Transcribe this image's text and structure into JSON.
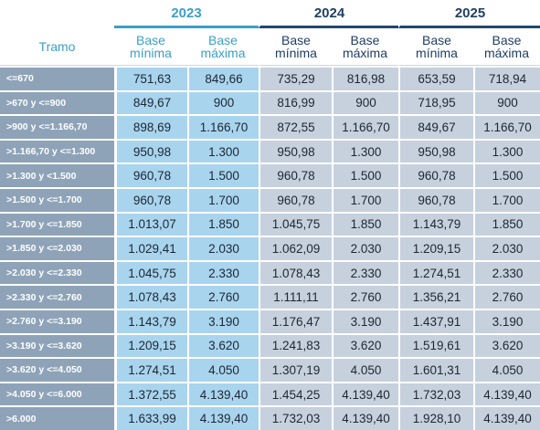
{
  "header": {
    "tramo_label": "Tramo",
    "years": [
      "2023",
      "2024",
      "2025"
    ],
    "sub_min": [
      "Base",
      "mínima"
    ],
    "sub_max": [
      "Base",
      "máxima"
    ]
  },
  "rows": [
    {
      "tramo": "<=670",
      "v": [
        "751,63",
        "849,66",
        "735,29",
        "816,98",
        "653,59",
        "718,94"
      ]
    },
    {
      "tramo": ">670 y <=900",
      "v": [
        "849,67",
        "900",
        "816,99",
        "900",
        "718,95",
        "900"
      ]
    },
    {
      "tramo": ">900 y <=1.166,70",
      "v": [
        "898,69",
        "1.166,70",
        "872,55",
        "1.166,70",
        "849,67",
        "1.166,70"
      ]
    },
    {
      "tramo": ">1.166,70 y <=1.300",
      "v": [
        "950,98",
        "1.300",
        "950,98",
        "1.300",
        "950,98",
        "1.300"
      ]
    },
    {
      "tramo": ">1.300 y <1.500",
      "v": [
        "960,78",
        "1.500",
        "960,78",
        "1.500",
        "960,78",
        "1.500"
      ]
    },
    {
      "tramo": ">1.500 y <=1.700",
      "v": [
        "960,78",
        "1.700",
        "960,78",
        "1.700",
        "960,78",
        "1.700"
      ]
    },
    {
      "tramo": ">1.700 y <=1.850",
      "v": [
        "1.013,07",
        "1.850",
        "1.045,75",
        "1.850",
        "1.143,79",
        "1.850"
      ]
    },
    {
      "tramo": ">1.850 y <=2.030",
      "v": [
        "1.029,41",
        "2.030",
        "1.062,09",
        "2.030",
        "1.209,15",
        "2.030"
      ]
    },
    {
      "tramo": ">2.030 y <=2.330",
      "v": [
        "1.045,75",
        "2.330",
        "1.078,43",
        "2.330",
        "1.274,51",
        "2.330"
      ]
    },
    {
      "tramo": ">2.330 y <=2.760",
      "v": [
        "1.078,43",
        "2.760",
        "1.111,11",
        "2.760",
        "1.356,21",
        "2.760"
      ]
    },
    {
      "tramo": ">2.760 y <=3.190",
      "v": [
        "1.143,79",
        "3.190",
        "1.176,47",
        "3.190",
        "1.437,91",
        "3.190"
      ]
    },
    {
      "tramo": ">3.190 y <=3.620",
      "v": [
        "1.209,15",
        "3.620",
        "1.241,83",
        "3.620",
        "1.519,61",
        "3.620"
      ]
    },
    {
      "tramo": ">3.620 y <=4.050",
      "v": [
        "1.274,51",
        "4.050",
        "1.307,19",
        "4.050",
        "1.601,31",
        "4.050"
      ]
    },
    {
      "tramo": ">4.050 y <=6.000",
      "v": [
        "1.372,55",
        "4.139,40",
        "1.454,25",
        "4.139,40",
        "1.732,03",
        "4.139,40"
      ]
    },
    {
      "tramo": ">6.000",
      "v": [
        "1.633,99",
        "4.139,40",
        "1.732,03",
        "4.139,40",
        "1.928,10",
        "4.139,40"
      ]
    }
  ]
}
